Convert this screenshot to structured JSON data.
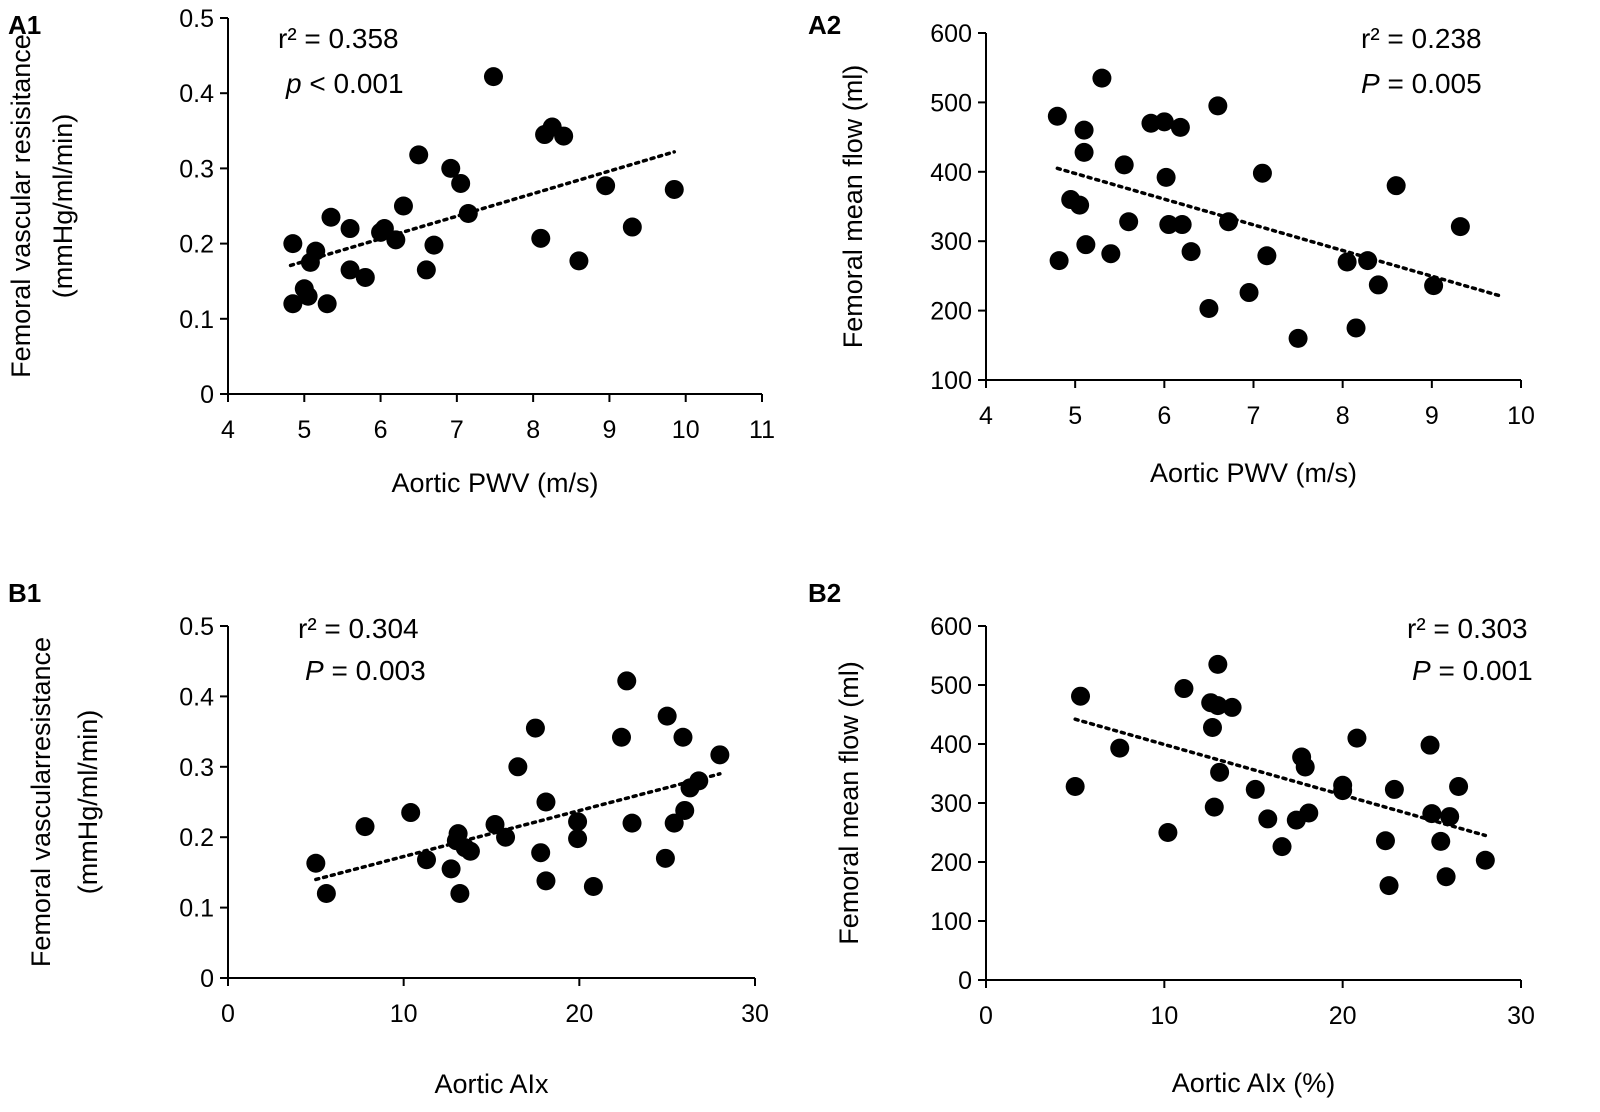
{
  "chart_data": [
    {
      "panel": "A1",
      "type": "scatter",
      "xlabel": "Aortic PWV (m/s)",
      "ylabel_lines": [
        "Femoral vascular resisitance",
        "(mmHg/ml/min)"
      ],
      "xlim": [
        4,
        11
      ],
      "ylim": [
        0,
        0.5
      ],
      "xticks": [
        4,
        5,
        6,
        7,
        8,
        9,
        10,
        11
      ],
      "yticks": [
        0,
        0.1,
        0.2,
        0.3,
        0.4,
        0.5
      ],
      "ytick_labels": [
        "0",
        "0.1",
        "0.2",
        "0.3",
        "0.4",
        "0.5"
      ],
      "stats": {
        "r2_label": "r² = 0.358",
        "p_symbol": "p",
        "p_text": " < 0.001"
      },
      "trendline": {
        "x": [
          4.82,
          9.85
        ],
        "y": [
          0.171,
          0.322
        ]
      },
      "points": [
        [
          4.85,
          0.2
        ],
        [
          4.85,
          0.12
        ],
        [
          5.0,
          0.14
        ],
        [
          5.05,
          0.13
        ],
        [
          5.08,
          0.175
        ],
        [
          5.15,
          0.19
        ],
        [
          5.3,
          0.12
        ],
        [
          5.35,
          0.235
        ],
        [
          5.6,
          0.22
        ],
        [
          5.6,
          0.165
        ],
        [
          5.8,
          0.155
        ],
        [
          6.0,
          0.215
        ],
        [
          6.05,
          0.22
        ],
        [
          6.2,
          0.205
        ],
        [
          6.3,
          0.25
        ],
        [
          6.5,
          0.318
        ],
        [
          6.6,
          0.165
        ],
        [
          6.7,
          0.198
        ],
        [
          6.92,
          0.3
        ],
        [
          7.05,
          0.28
        ],
        [
          7.15,
          0.24
        ],
        [
          7.48,
          0.422
        ],
        [
          8.1,
          0.207
        ],
        [
          8.15,
          0.345
        ],
        [
          8.25,
          0.355
        ],
        [
          8.4,
          0.343
        ],
        [
          8.6,
          0.177
        ],
        [
          8.95,
          0.277
        ],
        [
          9.3,
          0.222
        ],
        [
          9.85,
          0.272
        ]
      ]
    },
    {
      "panel": "A2",
      "type": "scatter",
      "xlabel": "Aortic PWV (m/s)",
      "ylabel_lines": [
        "Femoral mean flow (ml)"
      ],
      "xlim": [
        4,
        10
      ],
      "ylim": [
        100,
        600
      ],
      "xticks": [
        4,
        5,
        6,
        7,
        8,
        9,
        10
      ],
      "yticks": [
        100,
        200,
        300,
        400,
        500,
        600
      ],
      "ytick_labels": [
        "100",
        "200",
        "300",
        "400",
        "500",
        "600"
      ],
      "stats": {
        "r2_label": "r² = 0.238",
        "p_symbol": "P",
        "p_text": " = 0.005"
      },
      "trendline": {
        "x": [
          4.8,
          9.8
        ],
        "y": [
          405,
          220
        ]
      },
      "points": [
        [
          4.8,
          480
        ],
        [
          4.82,
          272
        ],
        [
          4.95,
          360
        ],
        [
          5.05,
          352
        ],
        [
          5.1,
          460
        ],
        [
          5.1,
          428
        ],
        [
          5.12,
          295
        ],
        [
          5.3,
          535
        ],
        [
          5.4,
          282
        ],
        [
          5.55,
          410
        ],
        [
          5.6,
          328
        ],
        [
          5.85,
          470
        ],
        [
          6.0,
          472
        ],
        [
          6.02,
          392
        ],
        [
          6.05,
          324
        ],
        [
          6.18,
          464
        ],
        [
          6.2,
          324
        ],
        [
          6.3,
          285
        ],
        [
          6.5,
          203
        ],
        [
          6.6,
          495
        ],
        [
          6.72,
          328
        ],
        [
          6.95,
          226
        ],
        [
          7.1,
          398
        ],
        [
          7.15,
          279
        ],
        [
          7.5,
          160
        ],
        [
          8.05,
          270
        ],
        [
          8.15,
          175
        ],
        [
          8.28,
          272
        ],
        [
          8.4,
          237
        ],
        [
          8.6,
          380
        ],
        [
          9.02,
          236
        ],
        [
          9.32,
          321
        ]
      ]
    },
    {
      "panel": "B1",
      "type": "scatter",
      "xlabel": "Aortic AIx",
      "ylabel_lines": [
        "Femoral vascularresistance",
        "(mmHg/ml/min)"
      ],
      "xlim": [
        0,
        30
      ],
      "ylim": [
        0,
        0.5
      ],
      "xticks": [
        0,
        10,
        20,
        30
      ],
      "yticks": [
        0,
        0.1,
        0.2,
        0.3,
        0.4,
        0.5
      ],
      "ytick_labels": [
        "0",
        "0.1",
        "0.2",
        "0.3",
        "0.4",
        "0.5"
      ],
      "stats": {
        "r2_label": "r² = 0.304",
        "p_symbol": "P",
        "p_text": " = 0.003"
      },
      "trendline": {
        "x": [
          5.0,
          28.0
        ],
        "y": [
          0.14,
          0.29
        ]
      },
      "points": [
        [
          5.0,
          0.163
        ],
        [
          5.6,
          0.12
        ],
        [
          7.8,
          0.215
        ],
        [
          10.4,
          0.235
        ],
        [
          11.3,
          0.168
        ],
        [
          12.7,
          0.155
        ],
        [
          13.0,
          0.195
        ],
        [
          13.1,
          0.205
        ],
        [
          13.2,
          0.12
        ],
        [
          13.5,
          0.185
        ],
        [
          13.8,
          0.18
        ],
        [
          15.2,
          0.218
        ],
        [
          15.8,
          0.2
        ],
        [
          16.5,
          0.3
        ],
        [
          17.5,
          0.355
        ],
        [
          17.8,
          0.178
        ],
        [
          18.1,
          0.25
        ],
        [
          18.1,
          0.138
        ],
        [
          19.9,
          0.222
        ],
        [
          19.9,
          0.198
        ],
        [
          20.8,
          0.13
        ],
        [
          22.4,
          0.342
        ],
        [
          22.7,
          0.422
        ],
        [
          23.0,
          0.22
        ],
        [
          24.9,
          0.17
        ],
        [
          25.0,
          0.372
        ],
        [
          25.4,
          0.22
        ],
        [
          25.9,
          0.342
        ],
        [
          26.0,
          0.238
        ],
        [
          26.3,
          0.27
        ],
        [
          26.8,
          0.28
        ],
        [
          28.0,
          0.317
        ]
      ]
    },
    {
      "panel": "B2",
      "type": "scatter",
      "xlabel": "Aortic AIx (%)",
      "ylabel_lines": [
        "Femoral mean flow (ml)"
      ],
      "xlim": [
        0,
        30
      ],
      "ylim": [
        0,
        600
      ],
      "xticks": [
        0,
        10,
        20,
        30
      ],
      "yticks": [
        0,
        100,
        200,
        300,
        400,
        500,
        600
      ],
      "ytick_labels": [
        "0",
        "100",
        "200",
        "300",
        "400",
        "500",
        "600"
      ],
      "stats": {
        "r2_label": "r² = 0.303",
        "p_symbol": "P",
        "p_text": " = 0.001"
      },
      "trendline": {
        "x": [
          5.0,
          28.0
        ],
        "y": [
          442,
          245
        ]
      },
      "points": [
        [
          5.0,
          328
        ],
        [
          5.3,
          481
        ],
        [
          7.5,
          393
        ],
        [
          10.2,
          250
        ],
        [
          11.1,
          494
        ],
        [
          12.6,
          470
        ],
        [
          12.7,
          428
        ],
        [
          12.8,
          293
        ],
        [
          13.0,
          465
        ],
        [
          13.0,
          535
        ],
        [
          13.1,
          352
        ],
        [
          13.8,
          462
        ],
        [
          15.1,
          323
        ],
        [
          15.8,
          273
        ],
        [
          16.6,
          226
        ],
        [
          17.4,
          271
        ],
        [
          17.7,
          378
        ],
        [
          17.9,
          361
        ],
        [
          18.1,
          283
        ],
        [
          20.0,
          330
        ],
        [
          20.0,
          321
        ],
        [
          20.8,
          410
        ],
        [
          22.4,
          236
        ],
        [
          22.6,
          160
        ],
        [
          22.9,
          323
        ],
        [
          24.9,
          398
        ],
        [
          25.0,
          282
        ],
        [
          25.5,
          235
        ],
        [
          25.8,
          175
        ],
        [
          26.0,
          277
        ],
        [
          26.5,
          328
        ],
        [
          28.0,
          203
        ]
      ]
    }
  ]
}
